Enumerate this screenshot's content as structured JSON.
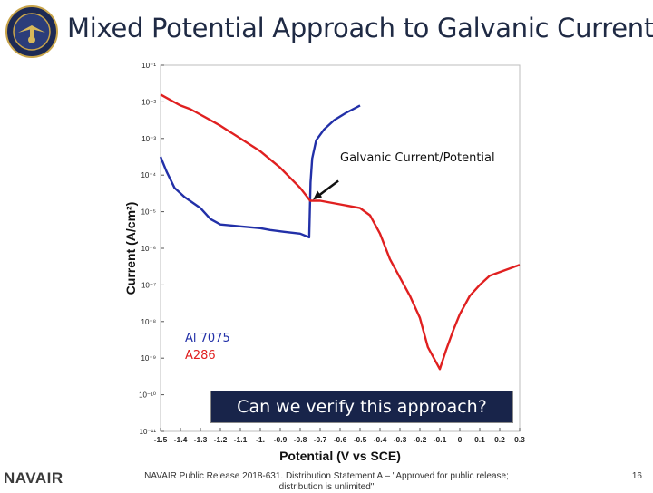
{
  "slide": {
    "title": "Mixed Potential Approach to Galvanic Current",
    "callout": "Can we verify this approach?",
    "footer_brand": "NAVAIR",
    "footer_text": "NAVAIR Public Release 2018-631. Distribution Statement A – \"Approved for public release; distribution is unlimited\"",
    "page_number": "16"
  },
  "colors": {
    "title": "#1f2a44",
    "al7075": "#2230a8",
    "a286": "#e02020",
    "callout_bg": "#18244a"
  },
  "chart_data": {
    "type": "line",
    "title": "",
    "xlabel": "Potential (V vs SCE)",
    "ylabel": "Current (A/cm²)",
    "xscale": "linear",
    "yscale": "log",
    "xlim": [
      -1.5,
      0.3
    ],
    "ylim_exp": [
      -11,
      -1
    ],
    "x_ticks": [
      "-1.5",
      "-1.4",
      "-1.3",
      "-1.2",
      "-1.1",
      "-1.",
      "-0.9",
      "-0.8",
      "-0.7",
      "-0.6",
      "-0.5",
      "-0.4",
      "-0.3",
      "-0.2",
      "-0.1",
      "0",
      "0.1",
      "0.2",
      "0.3"
    ],
    "y_ticks": [
      "10⁻¹¹",
      "10⁻¹⁰",
      "10⁻⁹",
      "10⁻⁸",
      "10⁻⁷",
      "10⁻⁶",
      "10⁻⁵",
      "10⁻⁴",
      "10⁻³",
      "10⁻²",
      "10⁻¹"
    ],
    "annotation": "Galvanic Current/Potential",
    "legend_position": "bottom-left",
    "series": [
      {
        "name": "Al 7075",
        "points": [
          [
            -1.5,
            -3.5
          ],
          [
            -1.47,
            -3.9
          ],
          [
            -1.43,
            -4.35
          ],
          [
            -1.38,
            -4.6
          ],
          [
            -1.3,
            -4.9
          ],
          [
            -1.25,
            -5.2
          ],
          [
            -1.2,
            -5.35
          ],
          [
            -1.1,
            -5.4
          ],
          [
            -1.0,
            -5.45
          ],
          [
            -0.95,
            -5.5
          ],
          [
            -0.88,
            -5.55
          ],
          [
            -0.8,
            -5.6
          ],
          [
            -0.755,
            -5.7
          ],
          [
            -0.752,
            -5.0
          ],
          [
            -0.748,
            -4.2
          ],
          [
            -0.74,
            -3.55
          ],
          [
            -0.72,
            -3.05
          ],
          [
            -0.68,
            -2.75
          ],
          [
            -0.63,
            -2.5
          ],
          [
            -0.57,
            -2.3
          ],
          [
            -0.5,
            -2.1
          ]
        ]
      },
      {
        "name": "A286",
        "points": [
          [
            -1.5,
            -1.8
          ],
          [
            -1.45,
            -1.95
          ],
          [
            -1.4,
            -2.1
          ],
          [
            -1.35,
            -2.2
          ],
          [
            -1.3,
            -2.35
          ],
          [
            -1.2,
            -2.65
          ],
          [
            -1.1,
            -3.0
          ],
          [
            -1.0,
            -3.35
          ],
          [
            -0.9,
            -3.8
          ],
          [
            -0.8,
            -4.35
          ],
          [
            -0.75,
            -4.7
          ],
          [
            -0.7,
            -4.7
          ],
          [
            -0.6,
            -4.8
          ],
          [
            -0.5,
            -4.9
          ],
          [
            -0.45,
            -5.1
          ],
          [
            -0.4,
            -5.6
          ],
          [
            -0.35,
            -6.3
          ],
          [
            -0.3,
            -6.8
          ],
          [
            -0.25,
            -7.3
          ],
          [
            -0.2,
            -7.9
          ],
          [
            -0.16,
            -8.7
          ],
          [
            -0.1,
            -9.3
          ],
          [
            -0.07,
            -8.8
          ],
          [
            -0.03,
            -8.2
          ],
          [
            0.0,
            -7.8
          ],
          [
            0.05,
            -7.3
          ],
          [
            0.1,
            -7.0
          ],
          [
            0.15,
            -6.75
          ],
          [
            0.2,
            -6.65
          ],
          [
            0.3,
            -6.45
          ]
        ]
      }
    ]
  }
}
